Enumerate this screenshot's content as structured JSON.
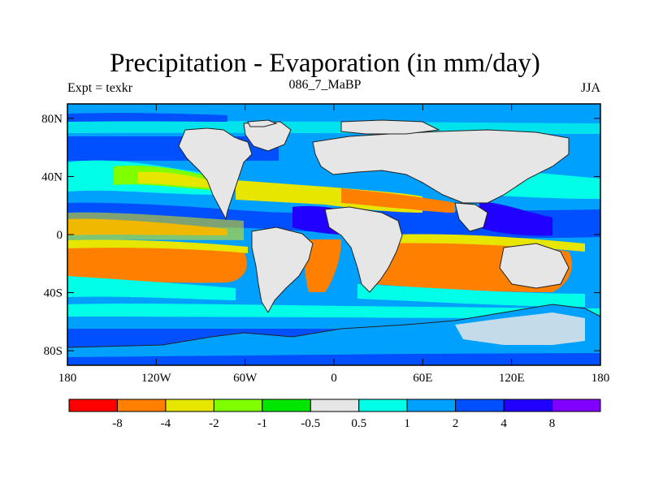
{
  "header": {
    "title": "Precipitation - Evaporation (in mm/day)",
    "left": "Expt = texkr",
    "center": "086_7_MaBP",
    "right": "JJA"
  },
  "map": {
    "lat_labels": [
      "80N",
      "40N",
      "0",
      "40S",
      "80S"
    ],
    "lat_values": [
      80,
      40,
      0,
      -40,
      -80
    ],
    "lon_labels": [
      "180",
      "120W",
      "60W",
      "0",
      "60E",
      "120E",
      "180"
    ],
    "lon_values": [
      -180,
      -120,
      -60,
      0,
      60,
      120,
      180
    ],
    "lat_range": [
      -90,
      90
    ],
    "lon_range": [
      -180,
      180
    ]
  },
  "legend": {
    "colors": [
      "#ff0000",
      "#ff8000",
      "#e6e600",
      "#80ff00",
      "#00e600",
      "#e6e6e6",
      "#00ffe6",
      "#00a0ff",
      "#0050ff",
      "#2000ff",
      "#8000ff"
    ],
    "labels": [
      "-8",
      "-4",
      "-2",
      "-1",
      "-0.5",
      "0.5",
      "1",
      "2",
      "4",
      "8"
    ]
  }
}
